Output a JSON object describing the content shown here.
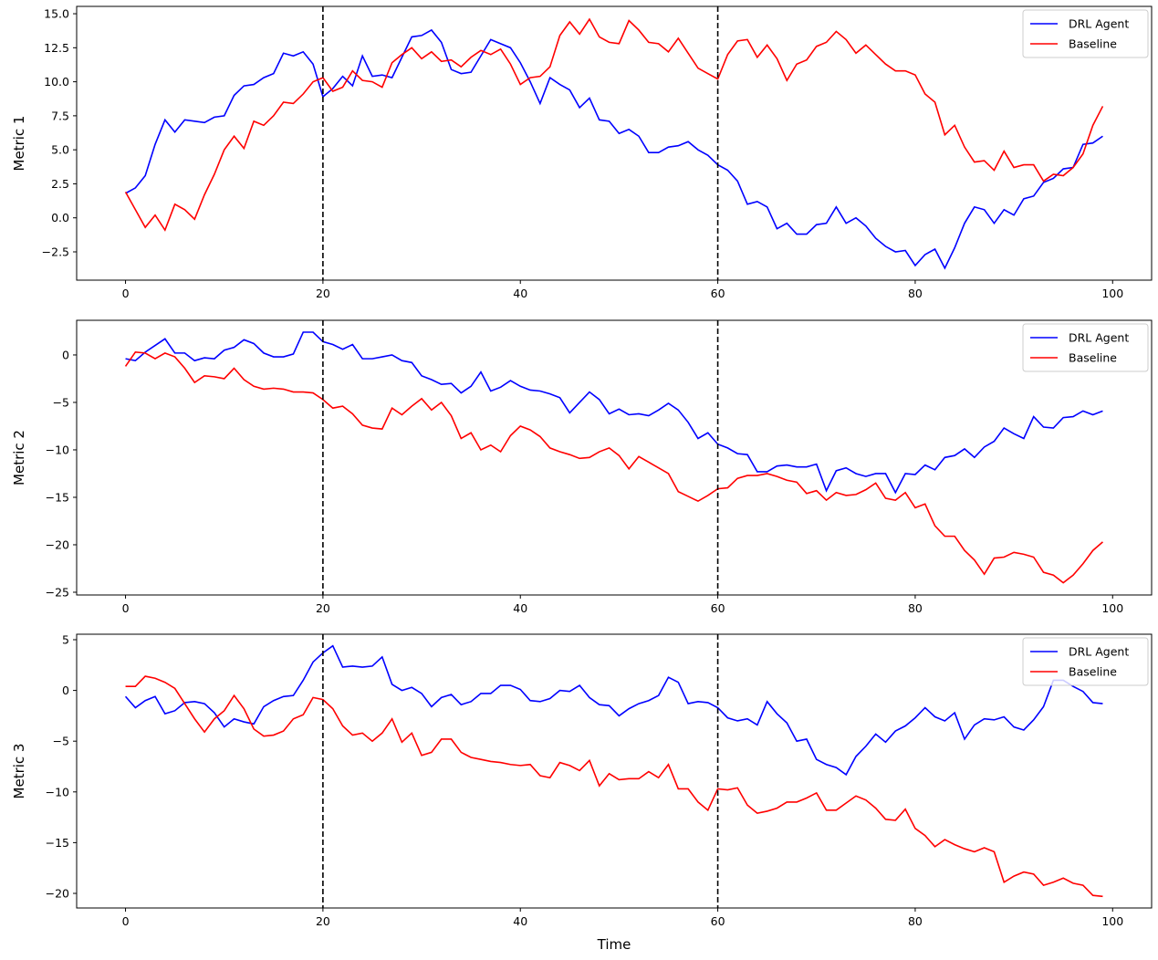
{
  "chart_data": [
    {
      "type": "line",
      "ylabel": "Metric 1",
      "x": [
        0,
        1,
        2,
        3,
        4,
        5,
        6,
        7,
        8,
        9,
        10,
        11,
        12,
        13,
        14,
        15,
        16,
        17,
        18,
        19,
        20,
        21,
        22,
        23,
        24,
        25,
        26,
        27,
        28,
        29,
        30,
        31,
        32,
        33,
        34,
        35,
        36,
        37,
        38,
        39,
        40,
        41,
        42,
        43,
        44,
        45,
        46,
        47,
        48,
        49,
        50,
        51,
        52,
        53,
        54,
        55,
        56,
        57,
        58,
        59,
        60,
        61,
        62,
        63,
        64,
        65,
        66,
        67,
        68,
        69,
        70,
        71,
        72,
        73,
        74,
        75,
        76,
        77,
        78,
        79,
        80,
        81,
        82,
        83,
        84,
        85,
        86,
        87,
        88,
        89,
        90,
        91,
        92,
        93,
        94,
        95,
        96,
        97,
        98,
        99
      ],
      "series": [
        {
          "name": "DRL Agent",
          "color": "#0000ff",
          "values": [
            1.8,
            2.2,
            3.1,
            5.4,
            7.2,
            6.3,
            7.2,
            7.1,
            7.0,
            7.4,
            7.5,
            9.0,
            9.7,
            9.8,
            10.3,
            10.6,
            12.1,
            11.9,
            12.2,
            11.3,
            8.9,
            9.5,
            10.4,
            9.7,
            11.9,
            10.4,
            10.5,
            10.3,
            11.8,
            13.3,
            13.4,
            13.8,
            12.9,
            10.9,
            10.6,
            10.7,
            11.9,
            13.1,
            12.8,
            12.5,
            11.4,
            10.0,
            8.4,
            10.3,
            9.8,
            9.4,
            8.1,
            8.8,
            7.2,
            7.1,
            6.2,
            6.5,
            6.0,
            4.8,
            4.8,
            5.2,
            5.3,
            5.6,
            5.0,
            4.6,
            3.9,
            3.5,
            2.7,
            1.0,
            1.2,
            0.8,
            -0.8,
            -0.4,
            -1.2,
            -1.2,
            -0.5,
            -0.4,
            0.8,
            -0.4,
            0.0,
            -0.6,
            -1.5,
            -2.1,
            -2.5,
            -2.4,
            -3.5,
            -2.7,
            -2.3,
            -3.7,
            -2.2,
            -0.4,
            0.8,
            0.6,
            -0.4,
            0.6,
            0.2,
            1.4,
            1.6,
            2.6,
            2.9,
            3.6,
            3.7,
            5.4,
            5.5,
            6.0
          ]
        },
        {
          "name": "Baseline",
          "color": "#ff0000",
          "values": [
            1.9,
            0.6,
            -0.7,
            0.2,
            -0.9,
            1.0,
            0.6,
            -0.1,
            1.7,
            3.2,
            5.0,
            6.0,
            5.1,
            7.1,
            6.8,
            7.5,
            8.5,
            8.4,
            9.1,
            10.0,
            10.3,
            9.3,
            9.6,
            10.8,
            10.1,
            10.0,
            9.6,
            11.4,
            12.0,
            12.5,
            11.7,
            12.2,
            11.5,
            11.6,
            11.1,
            11.8,
            12.3,
            12.0,
            12.4,
            11.3,
            9.8,
            10.3,
            10.4,
            11.1,
            13.4,
            14.4,
            13.5,
            14.6,
            13.3,
            12.9,
            12.8,
            14.5,
            13.8,
            12.9,
            12.8,
            12.2,
            13.2,
            12.1,
            11.0,
            10.6,
            10.2,
            12.0,
            13.0,
            13.1,
            11.8,
            12.7,
            11.7,
            10.1,
            11.3,
            11.6,
            12.6,
            12.9,
            13.7,
            13.1,
            12.1,
            12.7,
            12.0,
            11.3,
            10.8,
            10.8,
            10.5,
            9.1,
            8.5,
            6.1,
            6.8,
            5.2,
            4.1,
            4.2,
            3.5,
            4.9,
            3.7,
            3.9,
            3.9,
            2.7,
            3.2,
            3.1,
            3.7,
            4.7,
            6.8,
            8.2
          ]
        }
      ],
      "xlim": [
        -4.95,
        103.95
      ],
      "ylim": [
        -4.58,
        15.54
      ],
      "xticks": [
        0,
        20,
        40,
        60,
        80,
        100
      ],
      "yticks": [
        {
          "value": -2.5,
          "label": "−2.5"
        },
        {
          "value": 0,
          "label": "0.0"
        },
        2.5,
        {
          "value": 5,
          "label": "5.0"
        },
        7.5,
        {
          "value": 10,
          "label": "10.0"
        },
        12.5,
        {
          "value": 15,
          "label": "15.0"
        }
      ],
      "vlines": [
        20,
        60
      ],
      "legend": "upper right"
    },
    {
      "type": "line",
      "ylabel": "Metric 2",
      "x": [
        0,
        1,
        2,
        3,
        4,
        5,
        6,
        7,
        8,
        9,
        10,
        11,
        12,
        13,
        14,
        15,
        16,
        17,
        18,
        19,
        20,
        21,
        22,
        23,
        24,
        25,
        26,
        27,
        28,
        29,
        30,
        31,
        32,
        33,
        34,
        35,
        36,
        37,
        38,
        39,
        40,
        41,
        42,
        43,
        44,
        45,
        46,
        47,
        48,
        49,
        50,
        51,
        52,
        53,
        54,
        55,
        56,
        57,
        58,
        59,
        60,
        61,
        62,
        63,
        64,
        65,
        66,
        67,
        68,
        69,
        70,
        71,
        72,
        73,
        74,
        75,
        76,
        77,
        78,
        79,
        80,
        81,
        82,
        83,
        84,
        85,
        86,
        87,
        88,
        89,
        90,
        91,
        92,
        93,
        94,
        95,
        96,
        97,
        98,
        99
      ],
      "series": [
        {
          "name": "DRL Agent",
          "color": "#0000ff",
          "values": [
            -0.4,
            -0.6,
            0.3,
            1.0,
            1.7,
            0.2,
            0.2,
            -0.6,
            -0.3,
            -0.4,
            0.5,
            0.8,
            1.6,
            1.2,
            0.2,
            -0.2,
            -0.2,
            0.1,
            2.4,
            2.4,
            1.4,
            1.1,
            0.6,
            1.1,
            -0.4,
            -0.4,
            -0.2,
            0.0,
            -0.6,
            -0.8,
            -2.2,
            -2.6,
            -3.1,
            -3.0,
            -4.0,
            -3.3,
            -1.8,
            -3.8,
            -3.4,
            -2.7,
            -3.3,
            -3.7,
            -3.8,
            -4.1,
            -4.5,
            -6.1,
            -5.0,
            -3.9,
            -4.7,
            -6.2,
            -5.7,
            -6.3,
            -6.2,
            -6.4,
            -5.8,
            -5.1,
            -5.8,
            -7.1,
            -8.8,
            -8.2,
            -9.4,
            -9.8,
            -10.4,
            -10.5,
            -12.3,
            -12.3,
            -11.7,
            -11.6,
            -11.8,
            -11.8,
            -11.5,
            -14.3,
            -12.2,
            -11.9,
            -12.5,
            -12.8,
            -12.5,
            -12.5,
            -14.5,
            -12.5,
            -12.6,
            -11.6,
            -12.1,
            -10.8,
            -10.6,
            -9.9,
            -10.8,
            -9.7,
            -9.1,
            -7.7,
            -8.3,
            -8.8,
            -6.5,
            -7.6,
            -7.7,
            -6.6,
            -6.5,
            -5.9,
            -6.3,
            -5.9
          ]
        },
        {
          "name": "Baseline",
          "color": "#ff0000",
          "values": [
            -1.2,
            0.3,
            0.2,
            -0.4,
            0.2,
            -0.2,
            -1.4,
            -2.9,
            -2.2,
            -2.3,
            -2.5,
            -1.4,
            -2.6,
            -3.3,
            -3.6,
            -3.5,
            -3.6,
            -3.9,
            -3.9,
            -4.0,
            -4.7,
            -5.6,
            -5.4,
            -6.2,
            -7.4,
            -7.7,
            -7.8,
            -5.6,
            -6.3,
            -5.4,
            -4.6,
            -5.8,
            -5.0,
            -6.4,
            -8.8,
            -8.2,
            -10.0,
            -9.5,
            -10.2,
            -8.5,
            -7.5,
            -7.9,
            -8.6,
            -9.8,
            -10.2,
            -10.5,
            -10.9,
            -10.8,
            -10.2,
            -9.8,
            -10.6,
            -12.0,
            -10.7,
            -11.3,
            -11.9,
            -12.5,
            -14.4,
            -14.9,
            -15.4,
            -14.8,
            -14.1,
            -14.0,
            -13.0,
            -12.7,
            -12.7,
            -12.5,
            -12.8,
            -13.2,
            -13.4,
            -14.6,
            -14.3,
            -15.3,
            -14.5,
            -14.8,
            -14.7,
            -14.2,
            -13.5,
            -15.1,
            -15.3,
            -14.5,
            -16.1,
            -15.7,
            -18.0,
            -19.1,
            -19.1,
            -20.6,
            -21.6,
            -23.1,
            -21.4,
            -21.3,
            -20.8,
            -21.0,
            -21.3,
            -22.9,
            -23.2,
            -24.0,
            -23.2,
            -22.0,
            -20.6,
            -19.7
          ]
        }
      ],
      "xlim": [
        -4.95,
        103.95
      ],
      "ylim": [
        -25.29,
        3.65
      ],
      "xticks": [
        0,
        20,
        40,
        60,
        80,
        100
      ],
      "yticks": [
        {
          "value": -25,
          "label": "−25"
        },
        {
          "value": -20,
          "label": "−20"
        },
        {
          "value": -15,
          "label": "−15"
        },
        {
          "value": -10,
          "label": "−10"
        },
        {
          "value": -5,
          "label": "−5"
        },
        0
      ],
      "vlines": [
        20,
        60
      ],
      "legend": "upper right"
    },
    {
      "type": "line",
      "ylabel": "Metric 3",
      "xlabel": "Time",
      "x": [
        0,
        1,
        2,
        3,
        4,
        5,
        6,
        7,
        8,
        9,
        10,
        11,
        12,
        13,
        14,
        15,
        16,
        17,
        18,
        19,
        20,
        21,
        22,
        23,
        24,
        25,
        26,
        27,
        28,
        29,
        30,
        31,
        32,
        33,
        34,
        35,
        36,
        37,
        38,
        39,
        40,
        41,
        42,
        43,
        44,
        45,
        46,
        47,
        48,
        49,
        50,
        51,
        52,
        53,
        54,
        55,
        56,
        57,
        58,
        59,
        60,
        61,
        62,
        63,
        64,
        65,
        66,
        67,
        68,
        69,
        70,
        71,
        72,
        73,
        74,
        75,
        76,
        77,
        78,
        79,
        80,
        81,
        82,
        83,
        84,
        85,
        86,
        87,
        88,
        89,
        90,
        91,
        92,
        93,
        94,
        95,
        96,
        97,
        98,
        99
      ],
      "series": [
        {
          "name": "DRL Agent",
          "color": "#0000ff",
          "values": [
            -0.6,
            -1.7,
            -1.0,
            -0.6,
            -2.3,
            -2.0,
            -1.2,
            -1.1,
            -1.3,
            -2.2,
            -3.6,
            -2.8,
            -3.1,
            -3.3,
            -1.6,
            -1.0,
            -0.6,
            -0.5,
            1.0,
            2.8,
            3.7,
            4.4,
            2.3,
            2.4,
            2.3,
            2.4,
            3.3,
            0.6,
            0.0,
            0.3,
            -0.3,
            -1.6,
            -0.7,
            -0.4,
            -1.4,
            -1.1,
            -0.3,
            -0.3,
            0.5,
            0.5,
            0.1,
            -1.0,
            -1.1,
            -0.8,
            0.0,
            -0.1,
            0.5,
            -0.7,
            -1.4,
            -1.5,
            -2.5,
            -1.8,
            -1.3,
            -1.0,
            -0.5,
            1.3,
            0.8,
            -1.3,
            -1.1,
            -1.2,
            -1.7,
            -2.7,
            -3.0,
            -2.8,
            -3.4,
            -1.1,
            -2.3,
            -3.2,
            -5.0,
            -4.8,
            -6.8,
            -7.3,
            -7.6,
            -8.3,
            -6.5,
            -5.5,
            -4.3,
            -5.1,
            -4.0,
            -3.5,
            -2.7,
            -1.7,
            -2.6,
            -3.0,
            -2.2,
            -4.8,
            -3.4,
            -2.8,
            -2.9,
            -2.6,
            -3.6,
            -3.9,
            -2.9,
            -1.6,
            1.0,
            1.0,
            0.4,
            -0.1,
            -1.2,
            -1.3
          ]
        },
        {
          "name": "Baseline",
          "color": "#ff0000",
          "values": [
            0.4,
            0.4,
            1.4,
            1.2,
            0.8,
            0.2,
            -1.3,
            -2.8,
            -4.1,
            -2.8,
            -2.0,
            -0.5,
            -1.8,
            -3.8,
            -4.5,
            -4.4,
            -4.0,
            -2.8,
            -2.4,
            -0.7,
            -0.9,
            -1.8,
            -3.5,
            -4.4,
            -4.2,
            -5.0,
            -4.2,
            -2.8,
            -5.1,
            -4.2,
            -6.4,
            -6.1,
            -4.8,
            -4.8,
            -6.1,
            -6.6,
            -6.8,
            -7.0,
            -7.1,
            -7.3,
            -7.4,
            -7.3,
            -8.4,
            -8.6,
            -7.1,
            -7.4,
            -7.9,
            -6.9,
            -9.4,
            -8.2,
            -8.8,
            -8.7,
            -8.7,
            -8.0,
            -8.6,
            -7.3,
            -9.7,
            -9.7,
            -11.0,
            -11.8,
            -9.7,
            -9.8,
            -9.6,
            -11.3,
            -12.1,
            -11.9,
            -11.6,
            -11.0,
            -11.0,
            -10.6,
            -10.1,
            -11.8,
            -11.8,
            -11.1,
            -10.4,
            -10.8,
            -11.6,
            -12.7,
            -12.8,
            -11.7,
            -13.6,
            -14.3,
            -15.4,
            -14.7,
            -15.2,
            -15.6,
            -15.9,
            -15.5,
            -15.9,
            -18.9,
            -18.3,
            -17.9,
            -18.1,
            -19.2,
            -18.9,
            -18.5,
            -19.0,
            -19.2,
            -20.2,
            -20.3
          ]
        }
      ],
      "xlim": [
        -4.95,
        103.95
      ],
      "ylim": [
        -21.44,
        5.54
      ],
      "xticks": [
        0,
        20,
        40,
        60,
        80,
        100
      ],
      "yticks": [
        {
          "value": -20,
          "label": "−20"
        },
        {
          "value": -15,
          "label": "−15"
        },
        {
          "value": -10,
          "label": "−10"
        },
        {
          "value": -5,
          "label": "−5"
        },
        0,
        5
      ],
      "vlines": [
        20,
        60
      ],
      "legend": "upper right"
    }
  ]
}
